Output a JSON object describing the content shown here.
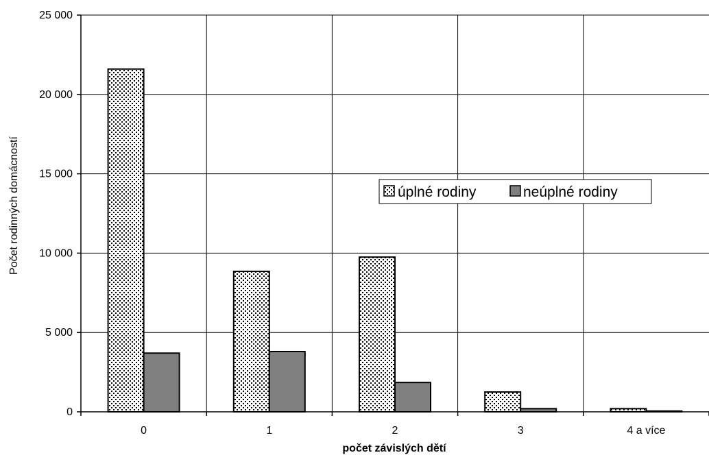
{
  "chart_data": {
    "type": "bar",
    "title": "",
    "xlabel": "počet závislých dětí",
    "ylabel": "Počet rodinných domácností",
    "categories": [
      "0",
      "1",
      "2",
      "3",
      "4 a více"
    ],
    "ylim": [
      0,
      25000
    ],
    "yticks": [
      0,
      5000,
      10000,
      15000,
      20000,
      25000
    ],
    "ytick_labels": [
      "0",
      "5 000",
      "10 000",
      "15 000",
      "20 000",
      "25 000"
    ],
    "grid": true,
    "legend_position": "center-right",
    "series": [
      {
        "name": "úplné rodiny",
        "values": [
          21600,
          8850,
          9750,
          1250,
          200
        ],
        "color": "#ffffff",
        "pattern": "dotted"
      },
      {
        "name": "neúplné rodiny",
        "values": [
          3700,
          3800,
          1850,
          200,
          50
        ],
        "color": "#808080",
        "pattern": "solid"
      }
    ]
  }
}
